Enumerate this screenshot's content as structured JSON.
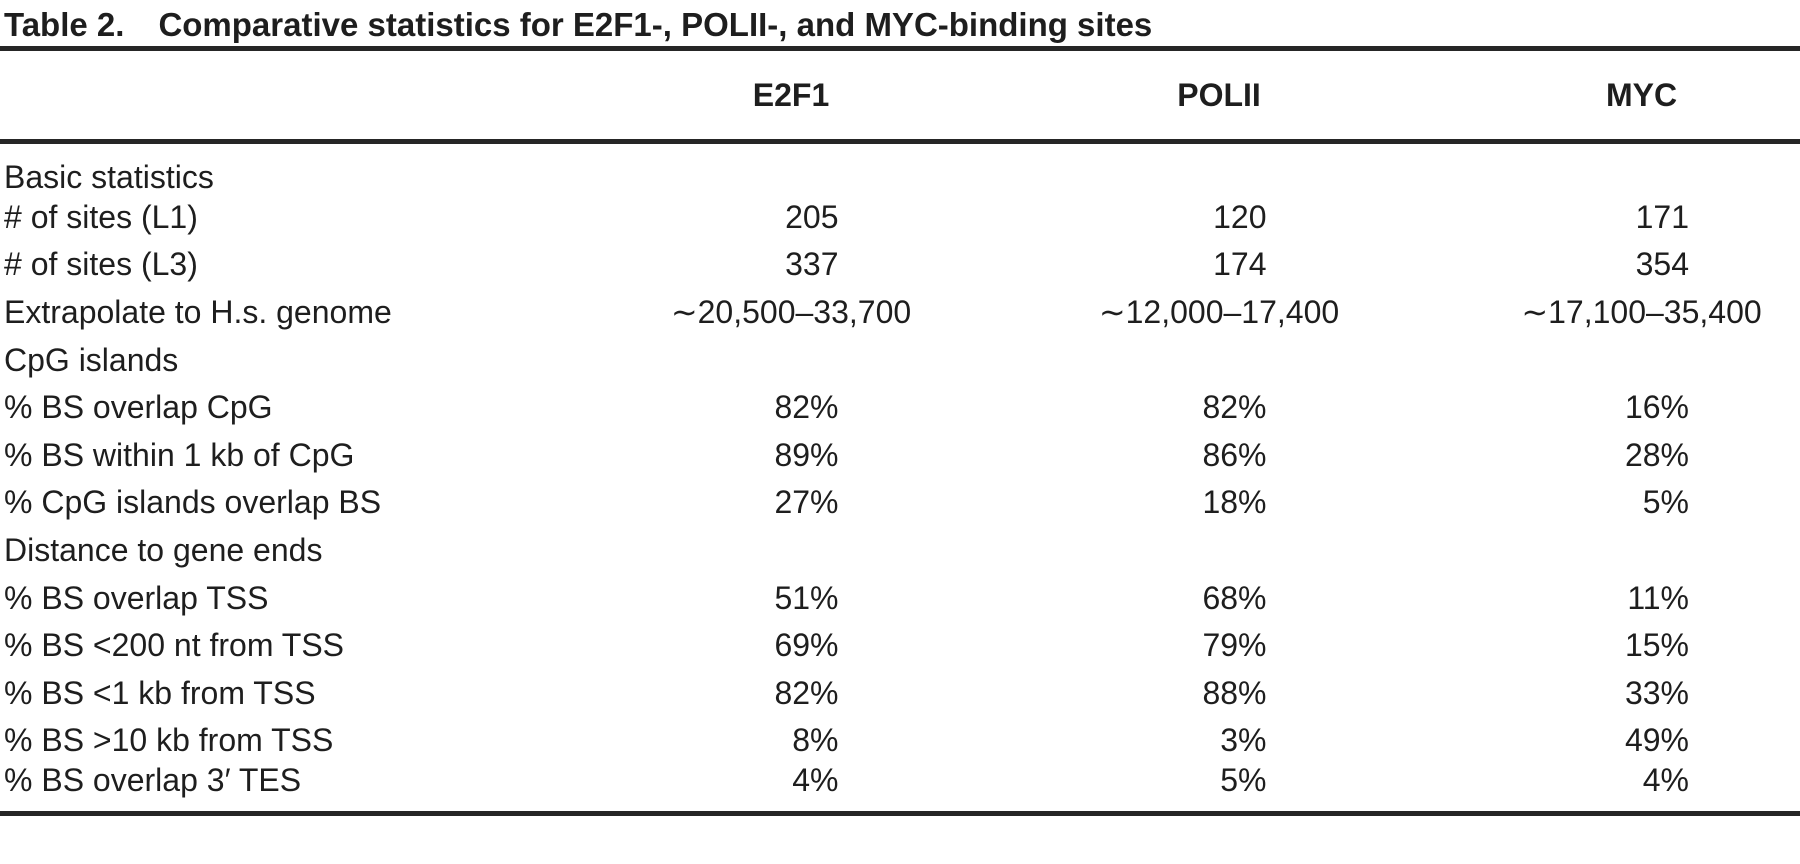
{
  "title": {
    "label": "Table 2.",
    "text": "Comparative statistics for E2F1-, POLII-, and MYC-binding sites"
  },
  "columns": [
    "E2F1",
    "POLII",
    "MYC"
  ],
  "rows": [
    {
      "label": "Basic statistics",
      "type": "section",
      "values": [
        "",
        "",
        ""
      ]
    },
    {
      "label": "# of sites (L1)",
      "type": "num",
      "values": [
        "205",
        "120",
        "171"
      ]
    },
    {
      "label": "# of sites (L3)",
      "type": "num",
      "values": [
        "337",
        "174",
        "354"
      ]
    },
    {
      "label": "Extrapolate to H.s. genome",
      "type": "range",
      "values": [
        "∼20,500–33,700",
        "∼12,000–17,400",
        "∼17,100–35,400"
      ]
    },
    {
      "label": "CpG islands",
      "type": "section",
      "values": [
        "",
        "",
        ""
      ]
    },
    {
      "label": "% BS overlap CpG",
      "type": "num",
      "values": [
        "82%",
        "82%",
        "16%"
      ]
    },
    {
      "label": "% BS within 1 kb of CpG",
      "type": "num",
      "values": [
        "89%",
        "86%",
        "28%"
      ]
    },
    {
      "label": "% CpG islands overlap BS",
      "type": "num",
      "values": [
        "27%",
        "18%",
        "5%"
      ]
    },
    {
      "label": "Distance to gene ends",
      "type": "section",
      "values": [
        "",
        "",
        ""
      ]
    },
    {
      "label": "% BS overlap TSS",
      "type": "num",
      "values": [
        "51%",
        "68%",
        "11%"
      ]
    },
    {
      "label": "% BS <200 nt from TSS",
      "type": "num",
      "values": [
        "69%",
        "79%",
        "15%"
      ]
    },
    {
      "label": "% BS <1 kb from TSS",
      "type": "num",
      "values": [
        "82%",
        "88%",
        "33%"
      ]
    },
    {
      "label": "% BS >10 kb from TSS",
      "type": "num",
      "values": [
        "8%",
        "3%",
        "49%"
      ]
    },
    {
      "label": "% BS overlap 3′ TES",
      "type": "num",
      "values": [
        "4%",
        "5%",
        "4%"
      ]
    }
  ],
  "colors": {
    "text": "#1e1e1e",
    "rule": "#262626",
    "background": "#ffffff"
  }
}
